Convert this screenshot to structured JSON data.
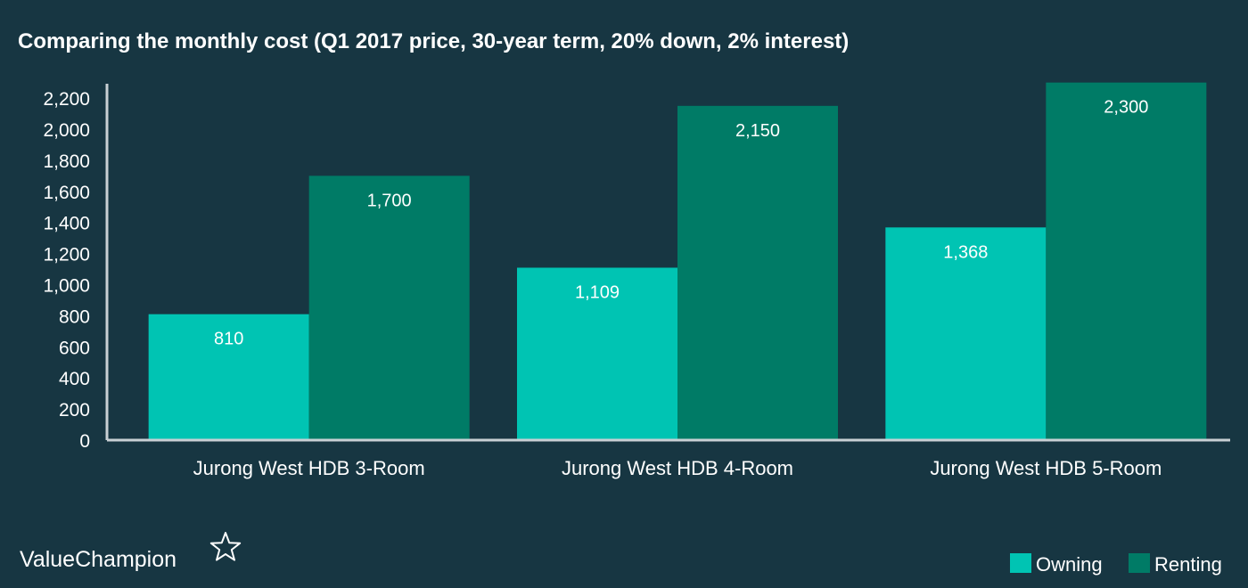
{
  "brand": {
    "name": "ValueChampion",
    "logo": "star-outline-icon"
  },
  "chart_data": {
    "type": "bar",
    "title": "Comparing the monthly cost (Q1 2017 price, 30-year term, 20% down, 2% interest)",
    "categories": [
      "Jurong West HDB 3-Room",
      "Jurong West HDB 4-Room",
      "Jurong West HDB 5-Room"
    ],
    "series": [
      {
        "name": "Owning",
        "values": [
          810,
          1109,
          1368
        ],
        "labels": [
          "810",
          "1,109",
          "1,368"
        ],
        "color": "#00c4b3"
      },
      {
        "name": "Renting",
        "values": [
          1700,
          2150,
          2300
        ],
        "labels": [
          "1,700",
          "2,150",
          "2,300"
        ],
        "color": "#007b66"
      }
    ],
    "yticks": [
      0,
      200,
      400,
      600,
      800,
      1000,
      1200,
      1400,
      1600,
      1800,
      2000,
      2200
    ],
    "ytick_labels": [
      "0",
      "200",
      "400",
      "600",
      "800",
      "1,000",
      "1,200",
      "1,400",
      "1,600",
      "1,800",
      "2,000",
      "2,200"
    ],
    "ylim": [
      0,
      2300
    ],
    "xlabel": "",
    "ylabel": "",
    "grid": false,
    "legend": "bottom-right",
    "colors": {
      "background": "#173642",
      "axis": "#c8d0d4",
      "text": "#ffffff"
    }
  }
}
